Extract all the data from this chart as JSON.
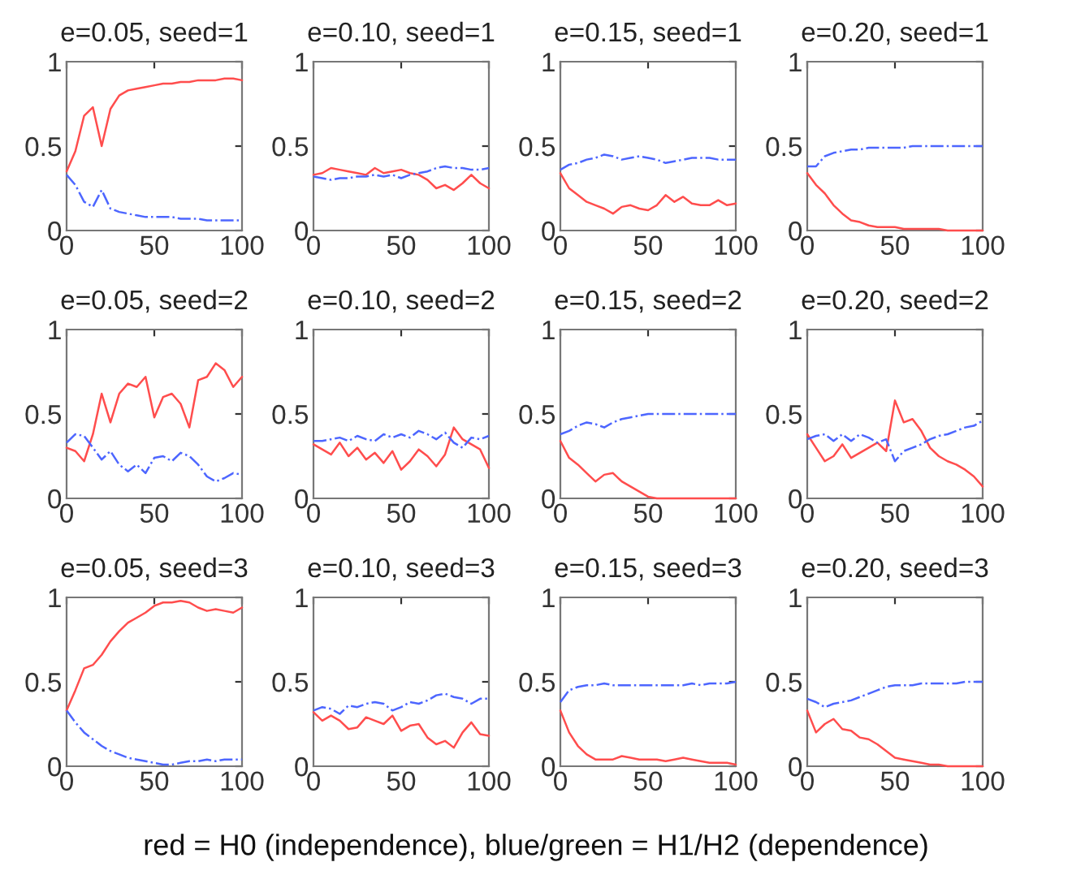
{
  "chart_data": [
    {
      "type": "line",
      "title": "e=0.05, seed=1",
      "x": [
        0,
        5,
        10,
        15,
        20,
        25,
        30,
        35,
        40,
        45,
        50,
        55,
        60,
        65,
        70,
        75,
        80,
        85,
        90,
        95,
        100
      ],
      "xlim": [
        0,
        100
      ],
      "ylim": [
        0,
        1
      ],
      "xticks": [
        0,
        50,
        100
      ],
      "yticks": [
        0,
        0.5,
        1
      ],
      "line_style": "solid",
      "series": [
        {
          "color": "#ff4d4d",
          "values": [
            0.35,
            0.47,
            0.68,
            0.73,
            0.5,
            0.72,
            0.8,
            0.83,
            0.84,
            0.85,
            0.86,
            0.87,
            0.87,
            0.88,
            0.88,
            0.89,
            0.89,
            0.89,
            0.9,
            0.9,
            0.89
          ]
        },
        {
          "color": "#4d66ff",
          "line_style": "dashdot",
          "values": [
            0.33,
            0.27,
            0.17,
            0.14,
            0.24,
            0.13,
            0.11,
            0.1,
            0.09,
            0.08,
            0.08,
            0.08,
            0.08,
            0.07,
            0.07,
            0.07,
            0.06,
            0.06,
            0.06,
            0.06,
            0.06
          ]
        }
      ]
    },
    {
      "type": "line",
      "title": "e=0.10, seed=1",
      "x": [
        0,
        5,
        10,
        15,
        20,
        25,
        30,
        35,
        40,
        45,
        50,
        55,
        60,
        65,
        70,
        75,
        80,
        85,
        90,
        95,
        100
      ],
      "xlim": [
        0,
        100
      ],
      "ylim": [
        0,
        1
      ],
      "xticks": [
        0,
        50,
        100
      ],
      "yticks": [
        0,
        0.5,
        1
      ],
      "line_style": "solid",
      "series": [
        {
          "color": "#ff4d4d",
          "values": [
            0.33,
            0.34,
            0.37,
            0.36,
            0.35,
            0.34,
            0.33,
            0.37,
            0.34,
            0.35,
            0.36,
            0.34,
            0.33,
            0.3,
            0.25,
            0.27,
            0.24,
            0.28,
            0.33,
            0.28,
            0.25
          ]
        },
        {
          "color": "#4d66ff",
          "line_style": "dashdot",
          "values": [
            0.32,
            0.31,
            0.3,
            0.31,
            0.31,
            0.32,
            0.32,
            0.33,
            0.32,
            0.33,
            0.31,
            0.33,
            0.34,
            0.35,
            0.37,
            0.38,
            0.37,
            0.37,
            0.36,
            0.36,
            0.37
          ]
        }
      ]
    },
    {
      "type": "line",
      "title": "e=0.15, seed=1",
      "x": [
        0,
        5,
        10,
        15,
        20,
        25,
        30,
        35,
        40,
        45,
        50,
        55,
        60,
        65,
        70,
        75,
        80,
        85,
        90,
        95,
        100
      ],
      "xlim": [
        0,
        100
      ],
      "ylim": [
        0,
        1
      ],
      "xticks": [
        0,
        50,
        100
      ],
      "yticks": [
        0,
        0.5,
        1
      ],
      "line_style": "solid",
      "series": [
        {
          "color": "#ff4d4d",
          "values": [
            0.34,
            0.25,
            0.21,
            0.17,
            0.15,
            0.13,
            0.1,
            0.14,
            0.15,
            0.13,
            0.12,
            0.15,
            0.21,
            0.17,
            0.2,
            0.16,
            0.15,
            0.15,
            0.18,
            0.15,
            0.16
          ]
        },
        {
          "color": "#4d66ff",
          "line_style": "dashdot",
          "values": [
            0.36,
            0.39,
            0.4,
            0.42,
            0.43,
            0.45,
            0.44,
            0.42,
            0.43,
            0.44,
            0.43,
            0.42,
            0.4,
            0.41,
            0.42,
            0.43,
            0.43,
            0.43,
            0.42,
            0.42,
            0.42
          ]
        }
      ]
    },
    {
      "type": "line",
      "title": "e=0.20, seed=1",
      "x": [
        0,
        5,
        10,
        15,
        20,
        25,
        30,
        35,
        40,
        45,
        50,
        55,
        60,
        65,
        70,
        75,
        80,
        85,
        90,
        95,
        100
      ],
      "xlim": [
        0,
        100
      ],
      "ylim": [
        0,
        1
      ],
      "xticks": [
        0,
        50,
        100
      ],
      "yticks": [
        0,
        0.5,
        1
      ],
      "line_style": "solid",
      "series": [
        {
          "color": "#ff4d4d",
          "values": [
            0.34,
            0.27,
            0.22,
            0.15,
            0.1,
            0.06,
            0.05,
            0.03,
            0.02,
            0.02,
            0.02,
            0.01,
            0.01,
            0.01,
            0.01,
            0.01,
            0.0,
            0.0,
            0.0,
            0.0,
            0.0
          ]
        },
        {
          "color": "#4d66ff",
          "line_style": "dashdot",
          "values": [
            0.38,
            0.38,
            0.44,
            0.46,
            0.47,
            0.48,
            0.48,
            0.49,
            0.49,
            0.49,
            0.49,
            0.49,
            0.5,
            0.5,
            0.5,
            0.5,
            0.5,
            0.5,
            0.5,
            0.5,
            0.5
          ]
        }
      ]
    },
    {
      "type": "line",
      "title": "e=0.05, seed=2",
      "x": [
        0,
        5,
        10,
        15,
        20,
        25,
        30,
        35,
        40,
        45,
        50,
        55,
        60,
        65,
        70,
        75,
        80,
        85,
        90,
        95,
        100
      ],
      "xlim": [
        0,
        100
      ],
      "ylim": [
        0,
        1
      ],
      "xticks": [
        0,
        50,
        100
      ],
      "yticks": [
        0,
        0.5,
        1
      ],
      "line_style": "solid",
      "series": [
        {
          "color": "#ff4d4d",
          "values": [
            0.3,
            0.28,
            0.22,
            0.38,
            0.62,
            0.45,
            0.62,
            0.68,
            0.66,
            0.72,
            0.48,
            0.6,
            0.62,
            0.56,
            0.42,
            0.7,
            0.72,
            0.8,
            0.76,
            0.66,
            0.72
          ]
        },
        {
          "color": "#4d66ff",
          "line_style": "dashdot",
          "values": [
            0.33,
            0.38,
            0.37,
            0.3,
            0.23,
            0.28,
            0.2,
            0.16,
            0.2,
            0.15,
            0.24,
            0.25,
            0.22,
            0.27,
            0.25,
            0.2,
            0.13,
            0.1,
            0.12,
            0.15,
            0.14
          ]
        }
      ]
    },
    {
      "type": "line",
      "title": "e=0.10, seed=2",
      "x": [
        0,
        5,
        10,
        15,
        20,
        25,
        30,
        35,
        40,
        45,
        50,
        55,
        60,
        65,
        70,
        75,
        80,
        85,
        90,
        95,
        100
      ],
      "xlim": [
        0,
        100
      ],
      "ylim": [
        0,
        1
      ],
      "xticks": [
        0,
        50,
        100
      ],
      "yticks": [
        0,
        0.5,
        1
      ],
      "line_style": "solid",
      "series": [
        {
          "color": "#ff4d4d",
          "values": [
            0.32,
            0.29,
            0.26,
            0.33,
            0.25,
            0.3,
            0.23,
            0.27,
            0.21,
            0.28,
            0.17,
            0.22,
            0.29,
            0.25,
            0.19,
            0.26,
            0.42,
            0.35,
            0.32,
            0.29,
            0.18
          ]
        },
        {
          "color": "#4d66ff",
          "line_style": "dashdot",
          "values": [
            0.34,
            0.34,
            0.35,
            0.36,
            0.34,
            0.37,
            0.35,
            0.34,
            0.38,
            0.36,
            0.38,
            0.36,
            0.4,
            0.38,
            0.35,
            0.39,
            0.33,
            0.3,
            0.36,
            0.35,
            0.37
          ]
        }
      ]
    },
    {
      "type": "line",
      "title": "e=0.15, seed=2",
      "x": [
        0,
        5,
        10,
        15,
        20,
        25,
        30,
        35,
        40,
        45,
        50,
        55,
        60,
        65,
        70,
        75,
        80,
        85,
        90,
        95,
        100
      ],
      "xlim": [
        0,
        100
      ],
      "ylim": [
        0,
        1
      ],
      "xticks": [
        0,
        50,
        100
      ],
      "yticks": [
        0,
        0.5,
        1
      ],
      "line_style": "solid",
      "series": [
        {
          "color": "#ff4d4d",
          "values": [
            0.34,
            0.24,
            0.2,
            0.15,
            0.1,
            0.14,
            0.15,
            0.1,
            0.07,
            0.04,
            0.01,
            0,
            0,
            0,
            0,
            0,
            0,
            0,
            0,
            0,
            0
          ]
        },
        {
          "color": "#4d66ff",
          "line_style": "dashdot",
          "values": [
            0.38,
            0.4,
            0.43,
            0.45,
            0.44,
            0.42,
            0.45,
            0.47,
            0.48,
            0.49,
            0.5,
            0.5,
            0.5,
            0.5,
            0.5,
            0.5,
            0.5,
            0.5,
            0.5,
            0.5,
            0.5
          ]
        }
      ]
    },
    {
      "type": "line",
      "title": "e=0.20, seed=2",
      "x": [
        0,
        5,
        10,
        15,
        20,
        25,
        30,
        35,
        40,
        45,
        50,
        55,
        60,
        65,
        70,
        75,
        80,
        85,
        90,
        95,
        100
      ],
      "xlim": [
        0,
        100
      ],
      "ylim": [
        0,
        1
      ],
      "xticks": [
        0,
        50,
        100
      ],
      "yticks": [
        0,
        0.5,
        1
      ],
      "line_style": "solid",
      "series": [
        {
          "color": "#ff4d4d",
          "values": [
            0.38,
            0.3,
            0.22,
            0.25,
            0.32,
            0.24,
            0.27,
            0.3,
            0.33,
            0.28,
            0.58,
            0.45,
            0.47,
            0.4,
            0.3,
            0.25,
            0.22,
            0.2,
            0.17,
            0.13,
            0.07
          ]
        },
        {
          "color": "#4d66ff",
          "line_style": "dashdot",
          "values": [
            0.35,
            0.37,
            0.38,
            0.34,
            0.38,
            0.34,
            0.38,
            0.36,
            0.33,
            0.35,
            0.22,
            0.28,
            0.3,
            0.32,
            0.35,
            0.37,
            0.38,
            0.4,
            0.42,
            0.43,
            0.46
          ]
        }
      ]
    },
    {
      "type": "line",
      "title": "e=0.05, seed=3",
      "x": [
        0,
        5,
        10,
        15,
        20,
        25,
        30,
        35,
        40,
        45,
        50,
        55,
        60,
        65,
        70,
        75,
        80,
        85,
        90,
        95,
        100
      ],
      "xlim": [
        0,
        100
      ],
      "ylim": [
        0,
        1
      ],
      "xticks": [
        0,
        50,
        100
      ],
      "yticks": [
        0,
        0.5,
        1
      ],
      "line_style": "solid",
      "series": [
        {
          "color": "#ff4d4d",
          "values": [
            0.33,
            0.45,
            0.58,
            0.6,
            0.66,
            0.74,
            0.8,
            0.85,
            0.88,
            0.91,
            0.95,
            0.97,
            0.97,
            0.98,
            0.97,
            0.94,
            0.92,
            0.93,
            0.92,
            0.91,
            0.94
          ]
        },
        {
          "color": "#4d66ff",
          "line_style": "dashdot",
          "values": [
            0.33,
            0.26,
            0.2,
            0.16,
            0.12,
            0.09,
            0.07,
            0.05,
            0.04,
            0.03,
            0.02,
            0.01,
            0.01,
            0.02,
            0.03,
            0.03,
            0.04,
            0.03,
            0.04,
            0.04,
            0.04
          ]
        }
      ]
    },
    {
      "type": "line",
      "title": "e=0.10, seed=3",
      "x": [
        0,
        5,
        10,
        15,
        20,
        25,
        30,
        35,
        40,
        45,
        50,
        55,
        60,
        65,
        70,
        75,
        80,
        85,
        90,
        95,
        100
      ],
      "xlim": [
        0,
        100
      ],
      "ylim": [
        0,
        1
      ],
      "xticks": [
        0,
        50,
        100
      ],
      "yticks": [
        0,
        0.5,
        1
      ],
      "line_style": "solid",
      "series": [
        {
          "color": "#ff4d4d",
          "values": [
            0.32,
            0.27,
            0.3,
            0.27,
            0.22,
            0.23,
            0.29,
            0.27,
            0.25,
            0.3,
            0.21,
            0.24,
            0.25,
            0.17,
            0.13,
            0.15,
            0.11,
            0.2,
            0.26,
            0.19,
            0.18
          ]
        },
        {
          "color": "#4d66ff",
          "line_style": "dashdot",
          "values": [
            0.33,
            0.35,
            0.34,
            0.31,
            0.36,
            0.35,
            0.37,
            0.38,
            0.37,
            0.33,
            0.35,
            0.38,
            0.37,
            0.39,
            0.42,
            0.43,
            0.41,
            0.4,
            0.37,
            0.4,
            0.4
          ]
        }
      ]
    },
    {
      "type": "line",
      "title": "e=0.15, seed=3",
      "x": [
        0,
        5,
        10,
        15,
        20,
        25,
        30,
        35,
        40,
        45,
        50,
        55,
        60,
        65,
        70,
        75,
        80,
        85,
        90,
        95,
        100
      ],
      "xlim": [
        0,
        100
      ],
      "ylim": [
        0,
        1
      ],
      "xticks": [
        0,
        50,
        100
      ],
      "yticks": [
        0,
        0.5,
        1
      ],
      "line_style": "solid",
      "series": [
        {
          "color": "#ff4d4d",
          "values": [
            0.33,
            0.2,
            0.12,
            0.07,
            0.04,
            0.04,
            0.04,
            0.06,
            0.05,
            0.04,
            0.04,
            0.04,
            0.03,
            0.04,
            0.05,
            0.04,
            0.03,
            0.02,
            0.02,
            0.02,
            0.01
          ]
        },
        {
          "color": "#4d66ff",
          "line_style": "dashdot",
          "values": [
            0.38,
            0.45,
            0.47,
            0.48,
            0.48,
            0.49,
            0.48,
            0.48,
            0.48,
            0.48,
            0.48,
            0.48,
            0.48,
            0.48,
            0.48,
            0.49,
            0.48,
            0.49,
            0.49,
            0.49,
            0.5
          ]
        }
      ]
    },
    {
      "type": "line",
      "title": "e=0.20, seed=3",
      "x": [
        0,
        5,
        10,
        15,
        20,
        25,
        30,
        35,
        40,
        45,
        50,
        55,
        60,
        65,
        70,
        75,
        80,
        85,
        90,
        95,
        100
      ],
      "xlim": [
        0,
        100
      ],
      "ylim": [
        0,
        1
      ],
      "xticks": [
        0,
        50,
        100
      ],
      "yticks": [
        0,
        0.5,
        1
      ],
      "line_style": "solid",
      "annotations": [
        "red = H0 (independence), blue/green = H1/H2 (dependence)"
      ],
      "series": [
        {
          "color": "#ff4d4d",
          "values": [
            0.33,
            0.2,
            0.25,
            0.28,
            0.22,
            0.21,
            0.17,
            0.16,
            0.13,
            0.09,
            0.05,
            0.04,
            0.03,
            0.02,
            0.01,
            0.01,
            0.0,
            0.0,
            0.0,
            0.0,
            0.0
          ]
        },
        {
          "color": "#4d66ff",
          "line_style": "dashdot",
          "values": [
            0.4,
            0.38,
            0.35,
            0.37,
            0.38,
            0.39,
            0.41,
            0.43,
            0.45,
            0.47,
            0.48,
            0.48,
            0.48,
            0.49,
            0.49,
            0.49,
            0.49,
            0.49,
            0.5,
            0.5,
            0.5
          ]
        }
      ]
    }
  ]
}
